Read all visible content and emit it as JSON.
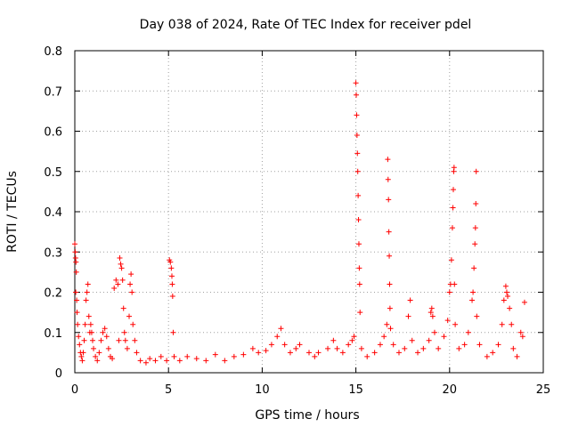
{
  "chart_data": {
    "type": "scatter",
    "title": "Day 038 of 2024, Rate Of TEC Index for receiver pdel",
    "xlabel": "GPS time / hours",
    "ylabel": "ROTI / TECUs",
    "xlim": [
      0,
      25
    ],
    "ylim": [
      0,
      0.8
    ],
    "xticks": [
      0,
      5,
      10,
      15,
      20,
      25
    ],
    "xtick_labels": [
      "0",
      "5",
      "10",
      "15",
      "20",
      "25"
    ],
    "yticks": [
      0,
      0.1,
      0.2,
      0.3,
      0.4,
      0.5,
      0.6,
      0.7,
      0.8
    ],
    "ytick_labels": [
      "0",
      "0.1",
      "0.2",
      "0.3",
      "0.4",
      "0.5",
      "0.6",
      "0.7",
      "0.8"
    ],
    "grid": true,
    "legend": "none",
    "marker": "+",
    "colors": {
      "series": "#ff0000",
      "grid": "#a0a0a0",
      "frame": "#000000"
    },
    "series": [
      {
        "name": "ROTI",
        "points": [
          [
            0.0,
            0.32
          ],
          [
            0.02,
            0.3
          ],
          [
            0.04,
            0.285
          ],
          [
            0.06,
            0.275
          ],
          [
            0.08,
            0.25
          ],
          [
            0.05,
            0.2
          ],
          [
            0.1,
            0.18
          ],
          [
            0.12,
            0.15
          ],
          [
            0.15,
            0.12
          ],
          [
            0.2,
            0.09
          ],
          [
            0.25,
            0.07
          ],
          [
            0.3,
            0.05
          ],
          [
            0.35,
            0.04
          ],
          [
            0.4,
            0.03
          ],
          [
            0.45,
            0.05
          ],
          [
            0.5,
            0.08
          ],
          [
            0.55,
            0.12
          ],
          [
            0.6,
            0.18
          ],
          [
            0.65,
            0.2
          ],
          [
            0.7,
            0.22
          ],
          [
            0.75,
            0.14
          ],
          [
            0.8,
            0.1
          ],
          [
            0.85,
            0.12
          ],
          [
            0.9,
            0.1
          ],
          [
            0.95,
            0.08
          ],
          [
            1.0,
            0.06
          ],
          [
            1.1,
            0.04
          ],
          [
            1.2,
            0.03
          ],
          [
            1.3,
            0.05
          ],
          [
            1.4,
            0.08
          ],
          [
            1.5,
            0.1
          ],
          [
            1.6,
            0.11
          ],
          [
            1.7,
            0.09
          ],
          [
            1.8,
            0.06
          ],
          [
            1.9,
            0.04
          ],
          [
            2.0,
            0.035
          ],
          [
            2.1,
            0.21
          ],
          [
            2.2,
            0.23
          ],
          [
            2.3,
            0.22
          ],
          [
            2.35,
            0.08
          ],
          [
            2.4,
            0.285
          ],
          [
            2.45,
            0.27
          ],
          [
            2.5,
            0.26
          ],
          [
            2.55,
            0.23
          ],
          [
            2.6,
            0.16
          ],
          [
            2.65,
            0.1
          ],
          [
            2.7,
            0.08
          ],
          [
            2.8,
            0.06
          ],
          [
            2.9,
            0.14
          ],
          [
            2.95,
            0.22
          ],
          [
            3.0,
            0.245
          ],
          [
            3.05,
            0.2
          ],
          [
            3.1,
            0.12
          ],
          [
            3.2,
            0.08
          ],
          [
            3.3,
            0.05
          ],
          [
            3.5,
            0.03
          ],
          [
            3.8,
            0.025
          ],
          [
            4.0,
            0.035
          ],
          [
            4.3,
            0.03
          ],
          [
            4.6,
            0.04
          ],
          [
            4.9,
            0.03
          ],
          [
            5.05,
            0.28
          ],
          [
            5.1,
            0.275
          ],
          [
            5.15,
            0.26
          ],
          [
            5.18,
            0.24
          ],
          [
            5.2,
            0.22
          ],
          [
            5.22,
            0.19
          ],
          [
            5.25,
            0.1
          ],
          [
            5.3,
            0.04
          ],
          [
            5.6,
            0.03
          ],
          [
            6.0,
            0.04
          ],
          [
            6.5,
            0.035
          ],
          [
            7.0,
            0.03
          ],
          [
            7.5,
            0.045
          ],
          [
            8.0,
            0.03
          ],
          [
            8.5,
            0.04
          ],
          [
            9.0,
            0.045
          ],
          [
            9.5,
            0.06
          ],
          [
            9.8,
            0.05
          ],
          [
            10.2,
            0.055
          ],
          [
            10.5,
            0.07
          ],
          [
            10.8,
            0.09
          ],
          [
            11.0,
            0.11
          ],
          [
            11.2,
            0.07
          ],
          [
            11.5,
            0.05
          ],
          [
            11.8,
            0.06
          ],
          [
            12.0,
            0.07
          ],
          [
            12.5,
            0.05
          ],
          [
            12.8,
            0.04
          ],
          [
            13.0,
            0.05
          ],
          [
            13.5,
            0.06
          ],
          [
            13.8,
            0.08
          ],
          [
            14.0,
            0.06
          ],
          [
            14.3,
            0.05
          ],
          [
            14.6,
            0.07
          ],
          [
            14.8,
            0.08
          ],
          [
            14.9,
            0.09
          ],
          [
            15.0,
            0.72
          ],
          [
            15.02,
            0.69
          ],
          [
            15.04,
            0.64
          ],
          [
            15.06,
            0.59
          ],
          [
            15.08,
            0.545
          ],
          [
            15.1,
            0.5
          ],
          [
            15.12,
            0.44
          ],
          [
            15.14,
            0.38
          ],
          [
            15.16,
            0.32
          ],
          [
            15.18,
            0.26
          ],
          [
            15.2,
            0.22
          ],
          [
            15.22,
            0.15
          ],
          [
            15.3,
            0.06
          ],
          [
            15.6,
            0.04
          ],
          [
            16.0,
            0.05
          ],
          [
            16.3,
            0.07
          ],
          [
            16.5,
            0.09
          ],
          [
            16.65,
            0.12
          ],
          [
            16.7,
            0.53
          ],
          [
            16.72,
            0.48
          ],
          [
            16.74,
            0.43
          ],
          [
            16.76,
            0.35
          ],
          [
            16.78,
            0.29
          ],
          [
            16.8,
            0.22
          ],
          [
            16.82,
            0.16
          ],
          [
            16.85,
            0.11
          ],
          [
            17.0,
            0.07
          ],
          [
            17.3,
            0.05
          ],
          [
            17.6,
            0.06
          ],
          [
            17.8,
            0.14
          ],
          [
            17.9,
            0.18
          ],
          [
            18.0,
            0.08
          ],
          [
            18.3,
            0.05
          ],
          [
            18.6,
            0.06
          ],
          [
            18.9,
            0.08
          ],
          [
            19.0,
            0.15
          ],
          [
            19.05,
            0.16
          ],
          [
            19.1,
            0.14
          ],
          [
            19.2,
            0.1
          ],
          [
            19.4,
            0.06
          ],
          [
            19.7,
            0.09
          ],
          [
            19.9,
            0.13
          ],
          [
            20.0,
            0.2
          ],
          [
            20.05,
            0.22
          ],
          [
            20.1,
            0.28
          ],
          [
            20.15,
            0.36
          ],
          [
            20.18,
            0.41
          ],
          [
            20.2,
            0.455
          ],
          [
            20.22,
            0.5
          ],
          [
            20.24,
            0.51
          ],
          [
            20.26,
            0.22
          ],
          [
            20.3,
            0.12
          ],
          [
            20.5,
            0.06
          ],
          [
            20.8,
            0.07
          ],
          [
            21.0,
            0.1
          ],
          [
            21.2,
            0.18
          ],
          [
            21.25,
            0.2
          ],
          [
            21.3,
            0.26
          ],
          [
            21.35,
            0.32
          ],
          [
            21.38,
            0.36
          ],
          [
            21.4,
            0.42
          ],
          [
            21.42,
            0.5
          ],
          [
            21.45,
            0.14
          ],
          [
            21.6,
            0.07
          ],
          [
            22.0,
            0.04
          ],
          [
            22.3,
            0.05
          ],
          [
            22.6,
            0.07
          ],
          [
            22.8,
            0.12
          ],
          [
            22.9,
            0.18
          ],
          [
            23.0,
            0.215
          ],
          [
            23.05,
            0.2
          ],
          [
            23.1,
            0.19
          ],
          [
            23.2,
            0.16
          ],
          [
            23.3,
            0.12
          ],
          [
            23.4,
            0.06
          ],
          [
            23.6,
            0.04
          ],
          [
            23.8,
            0.1
          ],
          [
            23.9,
            0.09
          ],
          [
            24.0,
            0.175
          ]
        ]
      }
    ]
  }
}
